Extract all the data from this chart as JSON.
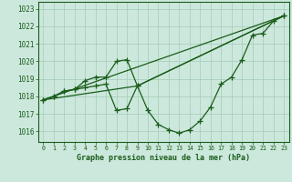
{
  "bg_color": "#cce8dc",
  "grid_color": "#aacfbc",
  "line_color": "#1a5c1a",
  "title": "Graphe pression niveau de la mer (hPa)",
  "xlim": [
    -0.5,
    23.5
  ],
  "ylim": [
    1015.4,
    1023.4
  ],
  "yticks": [
    1016,
    1017,
    1018,
    1019,
    1020,
    1021,
    1022,
    1023
  ],
  "xticks": [
    0,
    1,
    2,
    3,
    4,
    5,
    6,
    7,
    8,
    9,
    10,
    11,
    12,
    13,
    14,
    15,
    16,
    17,
    18,
    19,
    20,
    21,
    22,
    23
  ],
  "series1_x": [
    0,
    1,
    2,
    3,
    4,
    5,
    6,
    7,
    8,
    9,
    10,
    11,
    12,
    13,
    14,
    15,
    16,
    17,
    18,
    19,
    20,
    21,
    22,
    23
  ],
  "series1_y": [
    1017.8,
    1018.0,
    1018.3,
    1018.4,
    1018.5,
    1018.6,
    1018.7,
    1017.2,
    1017.3,
    1018.6,
    1017.2,
    1016.4,
    1016.1,
    1015.9,
    1016.1,
    1016.6,
    1017.4,
    1018.7,
    1019.1,
    1020.1,
    1021.5,
    1021.6,
    1022.3,
    1022.6
  ],
  "series2_x": [
    0,
    1,
    2,
    3,
    4,
    5,
    6,
    7,
    8,
    9,
    23
  ],
  "series2_y": [
    1017.8,
    1018.0,
    1018.3,
    1018.4,
    1018.9,
    1019.1,
    1019.1,
    1020.0,
    1020.1,
    1018.6,
    1022.6
  ],
  "series3_x": [
    0,
    23
  ],
  "series3_y": [
    1017.8,
    1022.6
  ],
  "series4_x": [
    0,
    9,
    23
  ],
  "series4_y": [
    1017.8,
    1018.6,
    1022.6
  ]
}
